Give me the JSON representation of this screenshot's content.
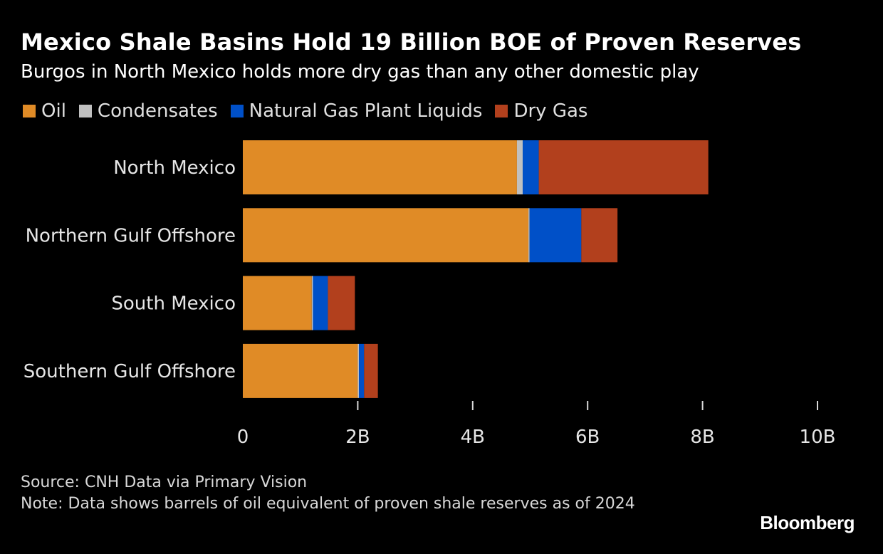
{
  "header": {
    "title": "Mexico Shale Basins Hold 19 Billion BOE of Proven Reserves",
    "subtitle": "Burgos in North Mexico holds more dry gas than any other domestic play"
  },
  "footer": {
    "source": "Source: CNH Data via Primary Vision",
    "note": "Note: Data shows barrels of oil equivalent of proven shale reserves as of 2024",
    "brand": "Bloomberg"
  },
  "colors": {
    "background": "#000000",
    "text": "#ffffff",
    "axis": "#d9d9d9"
  },
  "chart_data": {
    "type": "bar",
    "orientation": "horizontal",
    "stacked": true,
    "title": "Mexico Shale Basins Hold 19 Billion BOE of Proven Reserves",
    "subtitle": "Burgos in North Mexico holds more dry gas than any other domestic play",
    "categories": [
      "North Mexico",
      "Northern Gulf Offshore",
      "South Mexico",
      "Southern Gulf Offshore"
    ],
    "series": [
      {
        "name": "Oil",
        "color": "#e08b26",
        "values": [
          4.77,
          4.97,
          1.2,
          2.0
        ]
      },
      {
        "name": "Condensates",
        "color": "#c0c0c0",
        "values": [
          0.1,
          0.02,
          0.02,
          0.02
        ]
      },
      {
        "name": "Natural Gas Plant Liquids",
        "color": "#0050c8",
        "values": [
          0.28,
          0.9,
          0.26,
          0.09
        ]
      },
      {
        "name": "Dry Gas",
        "color": "#b2401d",
        "values": [
          2.95,
          0.63,
          0.47,
          0.24
        ]
      }
    ],
    "xlim": [
      0,
      10
    ],
    "xticks": [
      0,
      2,
      4,
      6,
      8,
      10
    ],
    "xtick_labels": [
      "0",
      "2B",
      "4B",
      "6B",
      "8B",
      "10B"
    ],
    "xlabel": "",
    "ylabel": "",
    "unit": "billion BOE",
    "legend_position": "top-left",
    "grid": false
  }
}
